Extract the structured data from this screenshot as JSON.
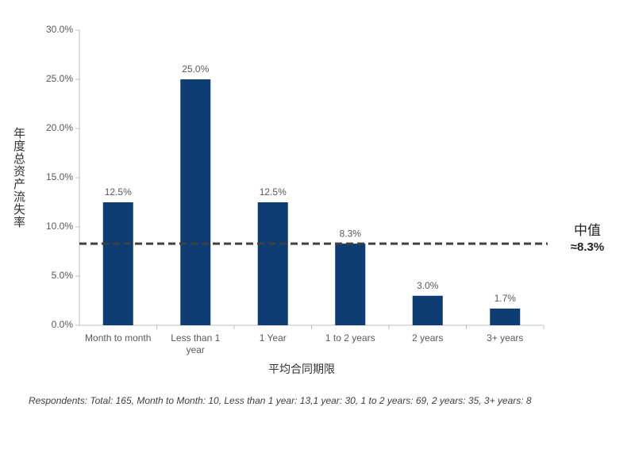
{
  "chart_data": {
    "type": "bar",
    "y_label": "年度总资产流失率",
    "x_label": "平均合同期限",
    "categories": [
      "Month to month",
      "Less than 1 year",
      "1 Year",
      "1 to 2 years",
      "2 years",
      "3+ years"
    ],
    "values": [
      12.5,
      25.0,
      12.5,
      8.3,
      3.0,
      1.7
    ],
    "value_labels": [
      "12.5%",
      "25.0%",
      "12.5%",
      "8.3%",
      "3.0%",
      "1.7%"
    ],
    "color": "#0e3d74",
    "ylim": [
      0,
      30
    ],
    "yticks": [
      {
        "value": 0,
        "label": "0.0%"
      },
      {
        "value": 5,
        "label": "5.0%"
      },
      {
        "value": 10,
        "label": "10.0%"
      },
      {
        "value": 15,
        "label": "15.0%"
      },
      {
        "value": 20,
        "label": "20.0%"
      },
      {
        "value": 25,
        "label": "25.0%"
      },
      {
        "value": 30,
        "label": "30.0%"
      }
    ],
    "median": {
      "label": "中值",
      "value": 8.3,
      "value_label": "≈8.3%"
    },
    "footnote": "Respondents: Total: 165, Month to Month: 10, Less than 1 year: 13,1 year: 30, 1 to 2 years: 69, 2 years: 35, 3+ years: 8"
  }
}
